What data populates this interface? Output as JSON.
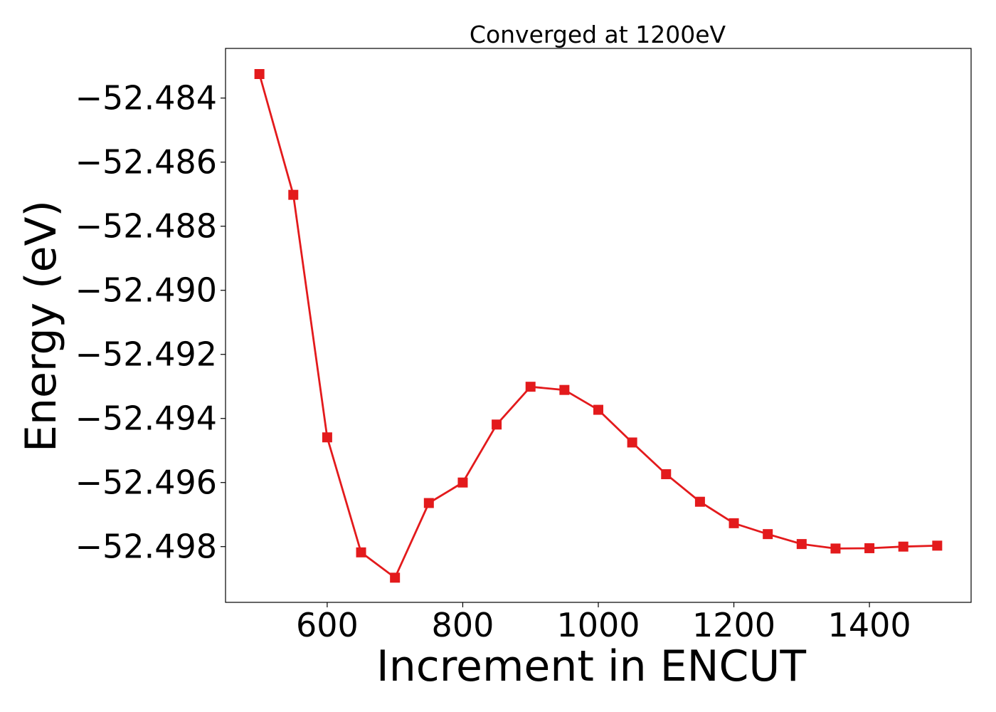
{
  "chart_data": {
    "type": "line",
    "title": "Converged at 1200eV",
    "xlabel": "Increment in ENCUT",
    "ylabel": "Energy (eV)",
    "x": [
      500,
      550,
      600,
      650,
      700,
      750,
      800,
      850,
      900,
      950,
      1000,
      1050,
      1100,
      1150,
      1200,
      1250,
      1300,
      1350,
      1400,
      1450,
      1500
    ],
    "series": [
      {
        "values": [
          -52.48325,
          -52.48702,
          -52.49459,
          -52.49818,
          -52.49897,
          -52.49664,
          -52.496,
          -52.49419,
          -52.49301,
          -52.49311,
          -52.49373,
          -52.49475,
          -52.49574,
          -52.4966,
          -52.49727,
          -52.49761,
          -52.49792,
          -52.49806,
          -52.49805,
          -52.498,
          -52.49797
        ],
        "color": "#e31a1c",
        "marker": "square"
      }
    ],
    "xlim": [
      450,
      1550
    ],
    "ylim": [
      -52.49974,
      -52.48245
    ],
    "xticks": [
      600,
      800,
      1000,
      1200,
      1400
    ],
    "xtick_labels": [
      "600",
      "800",
      "1000",
      "1200",
      "1400"
    ],
    "yticks": [
      -52.484,
      -52.486,
      -52.488,
      -52.49,
      -52.492,
      -52.494,
      -52.496,
      -52.498
    ],
    "ytick_labels": [
      "−52.484",
      "−52.486",
      "−52.488",
      "−52.490",
      "−52.492",
      "−52.494",
      "−52.496",
      "−52.498"
    ],
    "grid": false,
    "legend": false
  }
}
